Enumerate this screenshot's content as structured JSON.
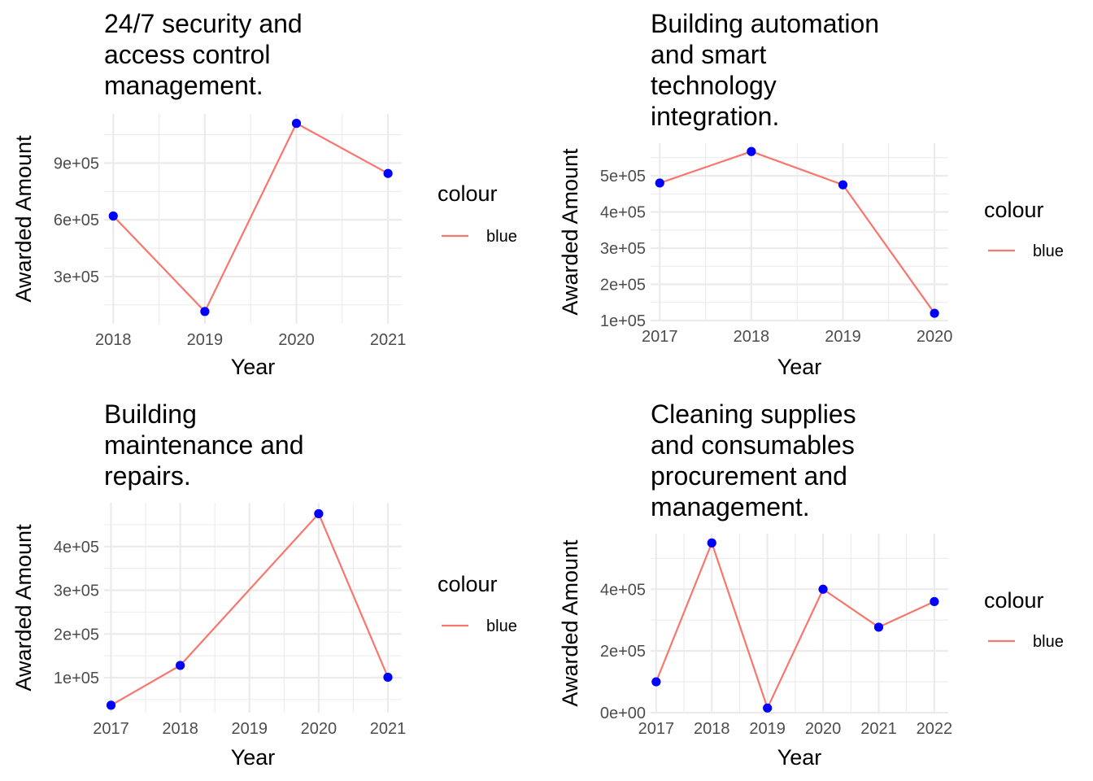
{
  "chart_data": [
    {
      "type": "line",
      "title": "24/7 security and access control management.",
      "xlabel": "Year",
      "ylabel": "Awarded Amount",
      "x": [
        2018,
        2019,
        2020,
        2021
      ],
      "series": [
        {
          "name": "blue",
          "values": [
            620000,
            115000,
            1110000,
            845000
          ]
        }
      ],
      "yticks": [
        300000,
        600000,
        900000
      ],
      "ytick_labels": [
        "3e+05",
        "6e+05",
        "9e+05"
      ],
      "xticks": [
        2018,
        2019,
        2020,
        2021
      ],
      "xtick_labels": [
        "2018",
        "2019",
        "2020",
        "2021"
      ],
      "xlim": [
        2017.9,
        2021.15
      ],
      "ylim": [
        50000,
        1160000
      ],
      "legend": {
        "title": "colour",
        "labels": [
          "blue"
        ],
        "position": "right"
      },
      "line_color": "#f8766d",
      "point_color": "#0000ff",
      "grid": true
    },
    {
      "type": "line",
      "title": "Building automation and smart technology integration.",
      "xlabel": "Year",
      "ylabel": "Awarded Amount",
      "x": [
        2017,
        2018,
        2019,
        2020
      ],
      "series": [
        {
          "name": "blue",
          "values": [
            480000,
            567000,
            475000,
            120000
          ]
        }
      ],
      "yticks": [
        100000,
        200000,
        300000,
        400000,
        500000
      ],
      "ytick_labels": [
        "1e+05",
        "2e+05",
        "3e+05",
        "4e+05",
        "5e+05"
      ],
      "xticks": [
        2017,
        2018,
        2019,
        2020
      ],
      "xtick_labels": [
        "2017",
        "2018",
        "2019",
        "2020"
      ],
      "xlim": [
        2016.9,
        2020.15
      ],
      "ylim": [
        100000,
        590000
      ],
      "legend": {
        "title": "colour",
        "labels": [
          "blue"
        ],
        "position": "right"
      },
      "line_color": "#f8766d",
      "point_color": "#0000ff",
      "grid": true
    },
    {
      "type": "line",
      "title": "Building maintenance and repairs.",
      "xlabel": "Year",
      "ylabel": "Awarded Amount",
      "x": [
        2017,
        2018,
        2020,
        2021
      ],
      "series": [
        {
          "name": "blue",
          "values": [
            37000,
            128000,
            475000,
            101000
          ]
        }
      ],
      "yticks": [
        100000,
        200000,
        300000,
        400000
      ],
      "ytick_labels": [
        "1e+05",
        "2e+05",
        "3e+05",
        "4e+05"
      ],
      "xticks": [
        2017,
        2018,
        2019,
        2020,
        2021
      ],
      "xtick_labels": [
        "2017",
        "2018",
        "2019",
        "2020",
        "2021"
      ],
      "xlim": [
        2016.9,
        2021.2
      ],
      "ylim": [
        20000,
        500000
      ],
      "legend": {
        "title": "colour",
        "labels": [
          "blue"
        ],
        "position": "right"
      },
      "line_color": "#f8766d",
      "point_color": "#0000ff",
      "grid": true
    },
    {
      "type": "line",
      "title": "Cleaning supplies and consumables procurement and management.",
      "xlabel": "Year",
      "ylabel": "Awarded Amount",
      "x": [
        2017,
        2018,
        2019,
        2020,
        2021,
        2022
      ],
      "series": [
        {
          "name": "blue",
          "values": [
            100000,
            550000,
            15000,
            400000,
            277000,
            360000
          ]
        }
      ],
      "yticks": [
        0,
        200000,
        400000
      ],
      "ytick_labels": [
        "0e+00",
        "2e+05",
        "4e+05"
      ],
      "xticks": [
        2017,
        2018,
        2019,
        2020,
        2021,
        2022
      ],
      "xtick_labels": [
        "2017",
        "2018",
        "2019",
        "2020",
        "2021",
        "2022"
      ],
      "xlim": [
        2016.9,
        2022.25
      ],
      "ylim": [
        0,
        580000
      ],
      "legend": {
        "title": "colour",
        "labels": [
          "blue"
        ],
        "position": "right"
      },
      "line_color": "#f8766d",
      "point_color": "#0000ff",
      "grid": true
    }
  ]
}
